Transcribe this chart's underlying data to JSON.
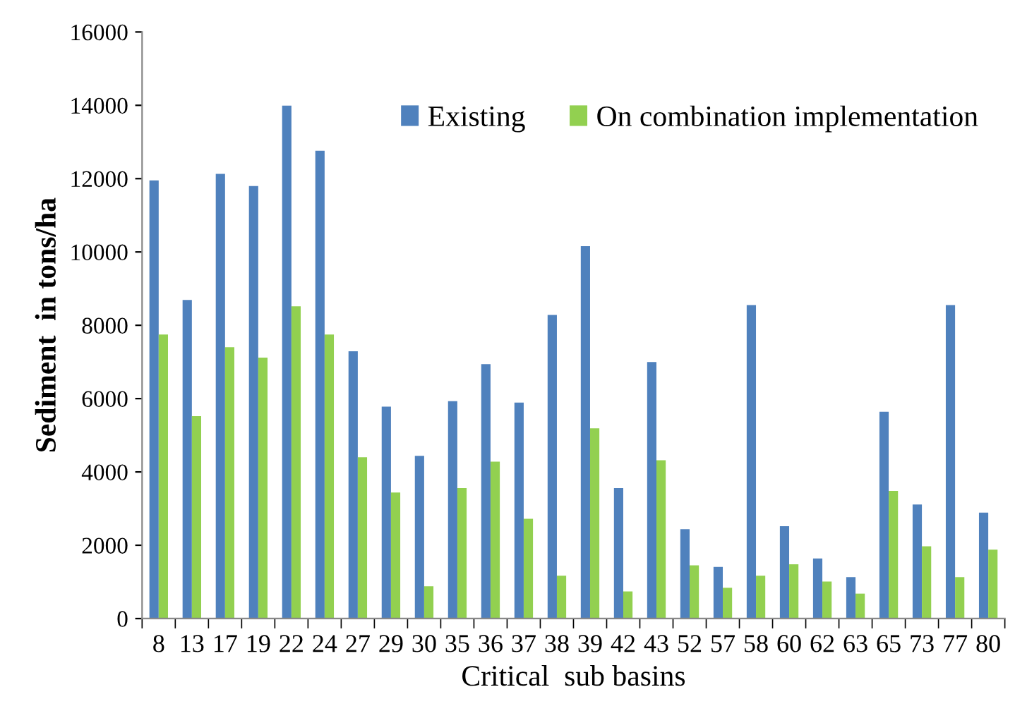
{
  "chart_data": {
    "type": "bar",
    "xlabel": "Critical  sub basins",
    "ylabel": "Sediment  in tons/ha",
    "categories": [
      "8",
      "13",
      "17",
      "19",
      "22",
      "24",
      "27",
      "29",
      "30",
      "35",
      "36",
      "37",
      "38",
      "39",
      "42",
      "43",
      "52",
      "57",
      "58",
      "60",
      "62",
      "63",
      "65",
      "73",
      "77",
      "80"
    ],
    "series": [
      {
        "name": "Existing",
        "color": "#4f81bd",
        "values": [
          11950,
          8690,
          12130,
          11800,
          13990,
          12760,
          7290,
          5780,
          4440,
          5930,
          6940,
          5890,
          8280,
          10160,
          3560,
          7000,
          2440,
          1410,
          8550,
          2520,
          1640,
          1130,
          5640,
          3110,
          8550,
          2890
        ]
      },
      {
        "name": "On combination implementation",
        "color": "#92d050",
        "values": [
          7750,
          5520,
          7400,
          7120,
          8520,
          7750,
          4400,
          3440,
          880,
          3560,
          4280,
          2720,
          1170,
          5190,
          740,
          4320,
          1450,
          840,
          1170,
          1480,
          1010,
          680,
          3480,
          1970,
          1130,
          1880
        ]
      }
    ],
    "ylim": [
      0,
      16000
    ],
    "yticks": [
      0,
      2000,
      4000,
      6000,
      8000,
      10000,
      12000,
      14000,
      16000
    ],
    "grid": false,
    "legend": "top right"
  }
}
